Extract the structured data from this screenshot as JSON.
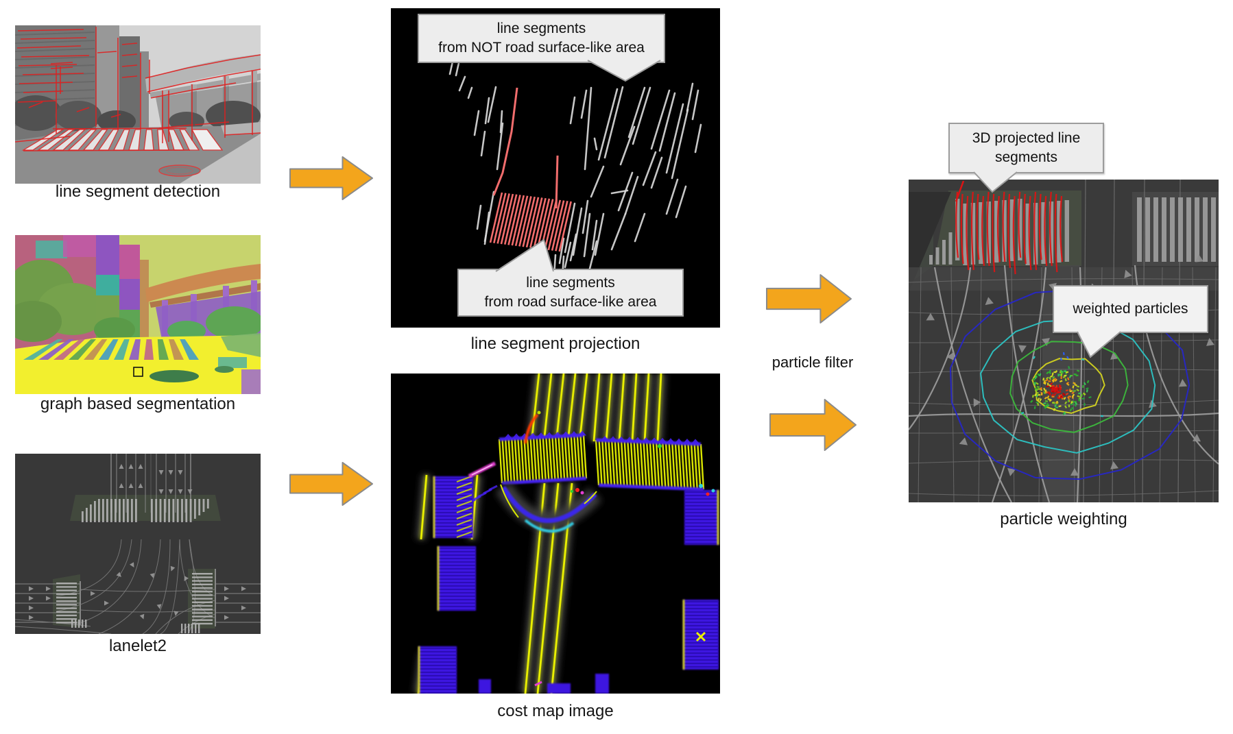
{
  "panels": {
    "detection": {
      "label": "line segment detection"
    },
    "segmentation": {
      "label": "graph based segmentation"
    },
    "lanelet2": {
      "label": "lanelet2"
    },
    "projection": {
      "label": "line segment projection"
    },
    "costmap": {
      "label": "cost map image"
    },
    "weighting": {
      "label": "particle weighting"
    }
  },
  "callouts": {
    "not_road": {
      "line1": "line segments",
      "line2": "from NOT road surface-like area"
    },
    "road": {
      "line1": "line segments",
      "line2": "from road surface-like area"
    },
    "projected": {
      "line1": "3D projected line",
      "line2": "segments"
    },
    "weighted": {
      "text": "weighted particles"
    }
  },
  "flow": {
    "particle_filter": "particle filter"
  },
  "colors": {
    "arrow_fill": "#f3a51c",
    "arrow_stroke": "#8a8a8a",
    "callout_bg": "#ededed",
    "callout_border": "#9c9c9c",
    "detected_line_red": "#e02020",
    "projected_line_red": "#f26d6d",
    "costmap_yellow": "#eaf000",
    "costmap_blue": "#4520f0",
    "costmap_magenta": "#e33fd2",
    "map_bg": "#3a3a3a",
    "segmentation_road_yellow": "#f2ef2e"
  }
}
